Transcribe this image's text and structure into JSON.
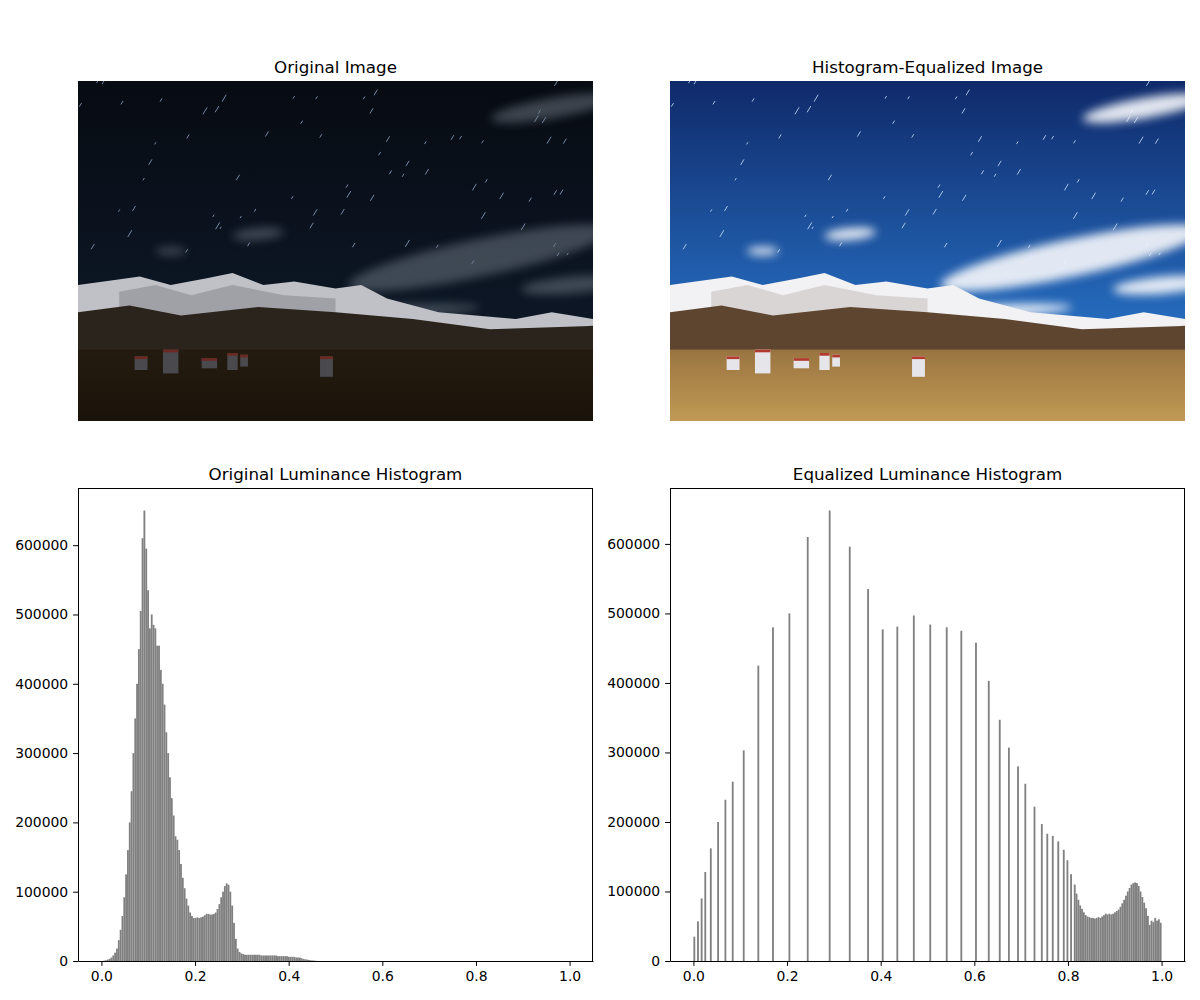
{
  "chart_data": [
    {
      "type": "image",
      "title": "Original Image",
      "tick_labels": false
    },
    {
      "type": "image",
      "title": "Histogram-Equalized Image",
      "tick_labels": false
    },
    {
      "type": "histogram",
      "title": "Original Luminance Histogram",
      "color": "#808080",
      "xlim": [
        -0.05,
        1.05
      ],
      "ylim": [
        0,
        682500
      ],
      "xticks": [
        {
          "value": 0,
          "label": "0.0"
        },
        0.2,
        0.4,
        0.6,
        0.8,
        {
          "value": 1,
          "label": "1.0"
        }
      ],
      "yticks": [
        0,
        100000,
        200000,
        300000,
        400000,
        500000,
        600000
      ],
      "bins": [
        0,
        0.0039,
        0.0078,
        0.0117,
        0.0156,
        0.0195,
        0.0234,
        0.0273,
        0.0313,
        0.0352,
        0.0391,
        0.043,
        0.0469,
        0.0508,
        0.0547,
        0.0586,
        0.0625,
        0.0664,
        0.0703,
        0.0742,
        0.0781,
        0.082,
        0.0859,
        0.0898,
        0.0938,
        0.0977,
        0.1016,
        0.1055,
        0.1094,
        0.1133,
        0.1172,
        0.1211,
        0.125,
        0.1289,
        0.1328,
        0.1367,
        0.1406,
        0.1445,
        0.1484,
        0.1523,
        0.1563,
        0.1602,
        0.1641,
        0.168,
        0.1719,
        0.1758,
        0.1797,
        0.1836,
        0.1875,
        0.1914,
        0.1953,
        0.1992,
        0.2031,
        0.207,
        0.2109,
        0.2148,
        0.2188,
        0.2227,
        0.2266,
        0.2305,
        0.2344,
        0.2383,
        0.2422,
        0.2461,
        0.25,
        0.2539,
        0.2578,
        0.2617,
        0.2656,
        0.2695,
        0.2734,
        0.2773,
        0.2813,
        0.2852,
        0.2891,
        0.293,
        0.2969,
        0.3008,
        0.3047,
        0.3086,
        0.3125,
        0.3164,
        0.3203,
        0.3242,
        0.3281,
        0.332,
        0.3359,
        0.3398,
        0.3438,
        0.3477,
        0.3516,
        0.3555,
        0.3594,
        0.3633,
        0.3672,
        0.3711,
        0.375,
        0.3789,
        0.3828,
        0.3867,
        0.3906,
        0.3945,
        0.3984,
        0.4023,
        0.4063,
        0.4102,
        0.4141,
        0.418,
        0.4219,
        0.4258,
        0.4297,
        0.4336,
        0.4375,
        0.4414,
        0.4453,
        0.4492,
        0.4531,
        0.457,
        0.4609,
        0.4648,
        0.4688,
        0.4727,
        0.4766,
        0.4805,
        0.4844,
        0.4883,
        0.4922,
        0.4961,
        0.5,
        0.5039,
        0.5078,
        0.5117,
        0.5156,
        0.5195,
        0.5234,
        0.5273,
        0.5313,
        0.5352,
        0.5391,
        0.543,
        0.5469,
        0.5508,
        0.5547,
        0.5586,
        0.5625,
        0.5664,
        0.5703,
        0.5742,
        0.5781,
        0.582,
        0.5859,
        0.5898,
        0.5938,
        0.5977,
        0.6016,
        0.6055,
        0.6094,
        0.6133,
        0.6172,
        0.6211,
        0.625,
        0.6289,
        0.6328,
        0.6367,
        0.6406,
        0.6445,
        0.6484,
        0.6523,
        0.6563,
        0.6602,
        0.6641,
        0.668,
        0.6719,
        0.6758,
        0.6797,
        0.6836,
        0.6875,
        0.6914,
        0.6953,
        0.6992,
        0.7031,
        0.707,
        0.7109,
        0.7148,
        0.7188,
        0.7227,
        0.7266,
        0.7305,
        0.7344,
        0.7383,
        0.7422,
        0.7461,
        0.75,
        0.7539,
        0.7578,
        0.7617,
        0.7656,
        0.7695,
        0.7734,
        0.7773,
        0.7813,
        0.7852,
        0.7891,
        0.793,
        0.7969,
        0.8008,
        0.8047,
        0.8086,
        0.8125,
        0.8164,
        0.8203,
        0.8242,
        0.8281,
        0.832,
        0.8359,
        0.8398,
        0.8438,
        0.8477,
        0.8516,
        0.8555,
        0.8594,
        0.8633,
        0.8672,
        0.8711,
        0.875,
        0.8789,
        0.8828,
        0.8867,
        0.8906,
        0.8945,
        0.8984,
        0.9023,
        0.9063,
        0.9102,
        0.9141,
        0.918,
        0.9219,
        0.9258,
        0.9297,
        0.9336,
        0.9375,
        0.9414,
        0.9453,
        0.9492,
        0.9531,
        0.957,
        0.9609,
        0.9648,
        0.9688,
        0.9727,
        0.9766,
        0.9805,
        0.9844,
        0.9883,
        0.9922,
        0.9961,
        1
      ],
      "counts": [
        0,
        500,
        1000,
        2000,
        3000,
        5000,
        8000,
        12000,
        18000,
        30000,
        45000,
        65000,
        92000,
        125000,
        160000,
        200000,
        245000,
        300000,
        350000,
        400000,
        450000,
        505000,
        610000,
        650000,
        595000,
        535000,
        480000,
        500000,
        485000,
        480000,
        455000,
        455000,
        420000,
        400000,
        370000,
        330000,
        300000,
        265000,
        235000,
        210000,
        180000,
        175000,
        160000,
        140000,
        120000,
        105000,
        90000,
        80000,
        70000,
        65000,
        62000,
        62000,
        63000,
        62000,
        63000,
        64000,
        66000,
        68000,
        68000,
        67000,
        67000,
        68000,
        70000,
        75000,
        82000,
        92000,
        100000,
        108000,
        112000,
        110000,
        100000,
        80000,
        55000,
        32000,
        18000,
        13000,
        11000,
        10000,
        9000,
        9000,
        9000,
        9000,
        9000,
        9000,
        9000,
        9000,
        9000,
        8000,
        8000,
        8000,
        8000,
        8000,
        8000,
        8000,
        8000,
        8000,
        7000,
        7000,
        7000,
        7000,
        7000,
        7000,
        6000,
        6000,
        6000,
        6000,
        5000,
        5000,
        5000,
        4000,
        3000,
        2500,
        2000,
        1500,
        1000,
        800,
        500,
        200,
        0,
        0,
        0,
        0,
        0,
        0,
        0,
        0,
        0,
        0,
        0,
        0,
        0,
        0,
        0,
        0,
        0,
        0,
        0,
        0,
        0,
        0,
        0,
        0,
        0,
        0,
        0,
        0,
        0,
        0,
        0,
        0,
        0,
        0,
        0,
        0,
        0,
        0,
        0,
        0,
        0,
        0,
        0,
        0,
        0,
        0,
        0,
        0,
        0,
        0,
        0,
        0,
        0,
        0,
        0,
        0,
        0,
        0,
        0,
        0,
        0,
        0,
        0,
        0,
        0,
        0,
        0,
        0,
        0,
        0,
        0,
        0,
        0,
        0,
        0,
        0,
        0,
        0,
        0,
        0,
        0,
        0,
        0,
        0,
        0,
        0,
        0,
        0,
        0,
        0,
        0,
        0,
        0,
        0,
        0,
        0,
        0,
        0,
        0,
        0,
        0,
        0,
        0,
        0,
        0,
        0,
        0,
        0,
        0,
        0,
        0,
        0,
        0,
        0,
        0,
        0,
        0,
        0,
        0,
        0,
        0,
        0,
        0,
        0,
        0,
        0,
        0,
        0,
        0,
        0,
        0,
        0,
        0,
        0,
        0,
        0,
        0,
        0
      ]
    },
    {
      "type": "histogram",
      "title": "Equalized Luminance Histogram",
      "color": "#808080",
      "xlim": [
        -0.05,
        1.05
      ],
      "ylim": [
        0,
        680400
      ],
      "xticks": [
        {
          "value": 0,
          "label": "0.0"
        },
        0.2,
        0.4,
        0.6,
        0.8,
        {
          "value": 1,
          "label": "1.0"
        }
      ],
      "yticks": [
        0,
        100000,
        200000,
        300000,
        400000,
        500000,
        600000
      ],
      "bins": [
        0,
        0.0039,
        0.0078,
        0.0117,
        0.0156,
        0.0195,
        0.0234,
        0.0273,
        0.0313,
        0.0352,
        0.0391,
        0.043,
        0.0469,
        0.0508,
        0.0547,
        0.0586,
        0.0625,
        0.0664,
        0.0703,
        0.0742,
        0.0781,
        0.082,
        0.0859,
        0.0898,
        0.0938,
        0.0977,
        0.1016,
        0.1055,
        0.1094,
        0.1133,
        0.1172,
        0.1211,
        0.125,
        0.1289,
        0.1328,
        0.1367,
        0.1406,
        0.1445,
        0.1484,
        0.1523,
        0.1563,
        0.1602,
        0.1641,
        0.168,
        0.1719,
        0.1758,
        0.1797,
        0.1836,
        0.1875,
        0.1914,
        0.1953,
        0.1992,
        0.2031,
        0.207,
        0.2109,
        0.2148,
        0.2188,
        0.2227,
        0.2266,
        0.2305,
        0.2344,
        0.2383,
        0.2422,
        0.2461,
        0.25,
        0.2539,
        0.2578,
        0.2617,
        0.2656,
        0.2695,
        0.2734,
        0.2773,
        0.2813,
        0.2852,
        0.2891,
        0.293,
        0.2969,
        0.3008,
        0.3047,
        0.3086,
        0.3125,
        0.3164,
        0.3203,
        0.3242,
        0.3281,
        0.332,
        0.3359,
        0.3398,
        0.3438,
        0.3477,
        0.3516,
        0.3555,
        0.3594,
        0.3633,
        0.3672,
        0.3711,
        0.375,
        0.3789,
        0.3828,
        0.3867,
        0.3906,
        0.3945,
        0.3984,
        0.4023,
        0.4063,
        0.4102,
        0.4141,
        0.418,
        0.4219,
        0.4258,
        0.4297,
        0.4336,
        0.4375,
        0.4414,
        0.4453,
        0.4492,
        0.4531,
        0.457,
        0.4609,
        0.4648,
        0.4688,
        0.4727,
        0.4766,
        0.4805,
        0.4844,
        0.4883,
        0.4922,
        0.4961,
        0.5,
        0.5039,
        0.5078,
        0.5117,
        0.5156,
        0.5195,
        0.5234,
        0.5273,
        0.5313,
        0.5352,
        0.5391,
        0.543,
        0.5469,
        0.5508,
        0.5547,
        0.5586,
        0.5625,
        0.5664,
        0.5703,
        0.5742,
        0.5781,
        0.582,
        0.5859,
        0.5898,
        0.5938,
        0.5977,
        0.6016,
        0.6055,
        0.6094,
        0.6133,
        0.6172,
        0.6211,
        0.625,
        0.6289,
        0.6328,
        0.6367,
        0.6406,
        0.6445,
        0.6484,
        0.6523,
        0.6563,
        0.6602,
        0.6641,
        0.668,
        0.6719,
        0.6758,
        0.6797,
        0.6836,
        0.6875,
        0.6914,
        0.6953,
        0.6992,
        0.7031,
        0.707,
        0.7109,
        0.7148,
        0.7188,
        0.7227,
        0.7266,
        0.7305,
        0.7344,
        0.7383,
        0.7422,
        0.7461,
        0.75,
        0.7539,
        0.7578,
        0.7617,
        0.7656,
        0.7695,
        0.7734,
        0.7773,
        0.7813,
        0.7852,
        0.7891,
        0.793,
        0.7969,
        0.8008,
        0.8047,
        0.8086,
        0.8125,
        0.8164,
        0.8203,
        0.8242,
        0.8281,
        0.832,
        0.8359,
        0.8398,
        0.8438,
        0.8477,
        0.8516,
        0.8555,
        0.8594,
        0.8633,
        0.8672,
        0.8711,
        0.875,
        0.8789,
        0.8828,
        0.8867,
        0.8906,
        0.8945,
        0.8984,
        0.9023,
        0.9063,
        0.9102,
        0.9141,
        0.918,
        0.9219,
        0.9258,
        0.9297,
        0.9336,
        0.9375,
        0.9414,
        0.9453,
        0.9492,
        0.9531,
        0.957,
        0.9609,
        0.9648,
        0.9688,
        0.9727,
        0.9766,
        0.9805,
        0.9844,
        0.9883,
        0.9922,
        0.9961,
        1
      ],
      "counts": [
        35000,
        0,
        57000,
        0,
        90000,
        0,
        128000,
        0,
        0,
        162000,
        0,
        0,
        0,
        200000,
        0,
        0,
        0,
        232000,
        0,
        0,
        0,
        258000,
        0,
        0,
        0,
        0,
        0,
        303000,
        0,
        0,
        0,
        0,
        0,
        0,
        0,
        425000,
        0,
        0,
        0,
        0,
        0,
        0,
        0,
        480000,
        0,
        0,
        0,
        0,
        0,
        0,
        0,
        0,
        500000,
        0,
        0,
        0,
        0,
        0,
        0,
        0,
        0,
        0,
        610000,
        0,
        0,
        0,
        0,
        0,
        0,
        0,
        0,
        0,
        0,
        0,
        648000,
        0,
        0,
        0,
        0,
        0,
        0,
        0,
        0,
        0,
        0,
        596000,
        0,
        0,
        0,
        0,
        0,
        0,
        0,
        0,
        0,
        535000,
        0,
        0,
        0,
        0,
        0,
        0,
        0,
        477000,
        0,
        0,
        0,
        0,
        0,
        0,
        0,
        481000,
        0,
        0,
        0,
        0,
        0,
        0,
        0,
        0,
        497000,
        0,
        0,
        0,
        0,
        0,
        0,
        0,
        0,
        484000,
        0,
        0,
        0,
        0,
        0,
        0,
        0,
        0,
        480000,
        0,
        0,
        0,
        0,
        0,
        0,
        0,
        475000,
        0,
        0,
        0,
        0,
        0,
        0,
        0,
        458000,
        0,
        0,
        0,
        0,
        0,
        0,
        403000,
        0,
        0,
        0,
        0,
        0,
        347000,
        0,
        0,
        0,
        0,
        307000,
        0,
        0,
        0,
        0,
        280000,
        0,
        0,
        0,
        255000,
        0,
        0,
        0,
        0,
        222000,
        0,
        0,
        0,
        197000,
        0,
        0,
        183000,
        0,
        0,
        180000,
        0,
        0,
        172000,
        0,
        0,
        160000,
        0,
        145000,
        0,
        125000,
        0,
        110000,
        97000,
        88000,
        80000,
        75000,
        70000,
        66000,
        64000,
        63000,
        62000,
        62000,
        61000,
        62000,
        63000,
        62000,
        64000,
        66000,
        68000,
        67000,
        68000,
        67000,
        68000,
        70000,
        72000,
        74000,
        78000,
        83000,
        88000,
        94000,
        100000,
        105000,
        110000,
        112000,
        113000,
        112000,
        108000,
        100000,
        92000,
        84000,
        76000,
        65000,
        52000,
        58000,
        56000,
        62000,
        58000,
        60000,
        55000
      ]
    }
  ]
}
